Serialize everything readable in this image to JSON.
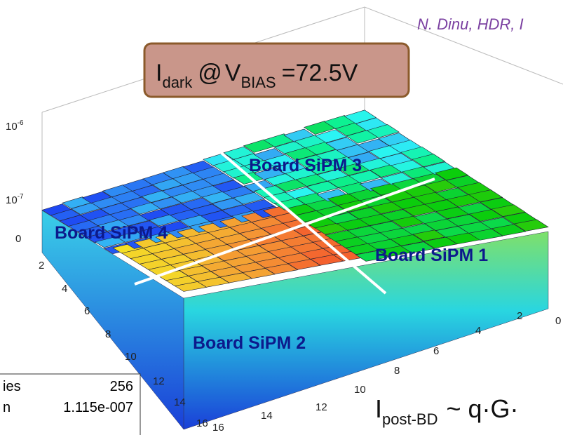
{
  "header": {
    "author": "N. Dinu, HDR, I"
  },
  "callout": {
    "symbol": "I",
    "symbol_sub": "dark",
    "at": "@",
    "voltage": "V",
    "voltage_sub": "BIAS",
    "value": "=72.5V"
  },
  "regions": [
    "Board SiPM 3",
    "Board SiPM 4",
    "Board SiPM 1",
    "Board SiPM  2"
  ],
  "z_axis_labels": [
    {
      "base": "10",
      "exp": "-6"
    },
    {
      "base": "10",
      "exp": "-7"
    },
    {
      "base": "0",
      "exp": ""
    }
  ],
  "left_axis_labels": [
    "2",
    "4",
    "6",
    "8",
    "10",
    "12",
    "14",
    "16"
  ],
  "right_axis_labels": [
    "16",
    "14",
    "12",
    "10",
    "8",
    "6",
    "4",
    "2",
    "0"
  ],
  "stats": {
    "rows": [
      [
        "ies",
        "256"
      ],
      [
        "n",
        "1.115e-007"
      ]
    ]
  },
  "formula": {
    "symbol": "I",
    "symbol_sub": "post-BD",
    "rest": "~ q·G·"
  }
}
